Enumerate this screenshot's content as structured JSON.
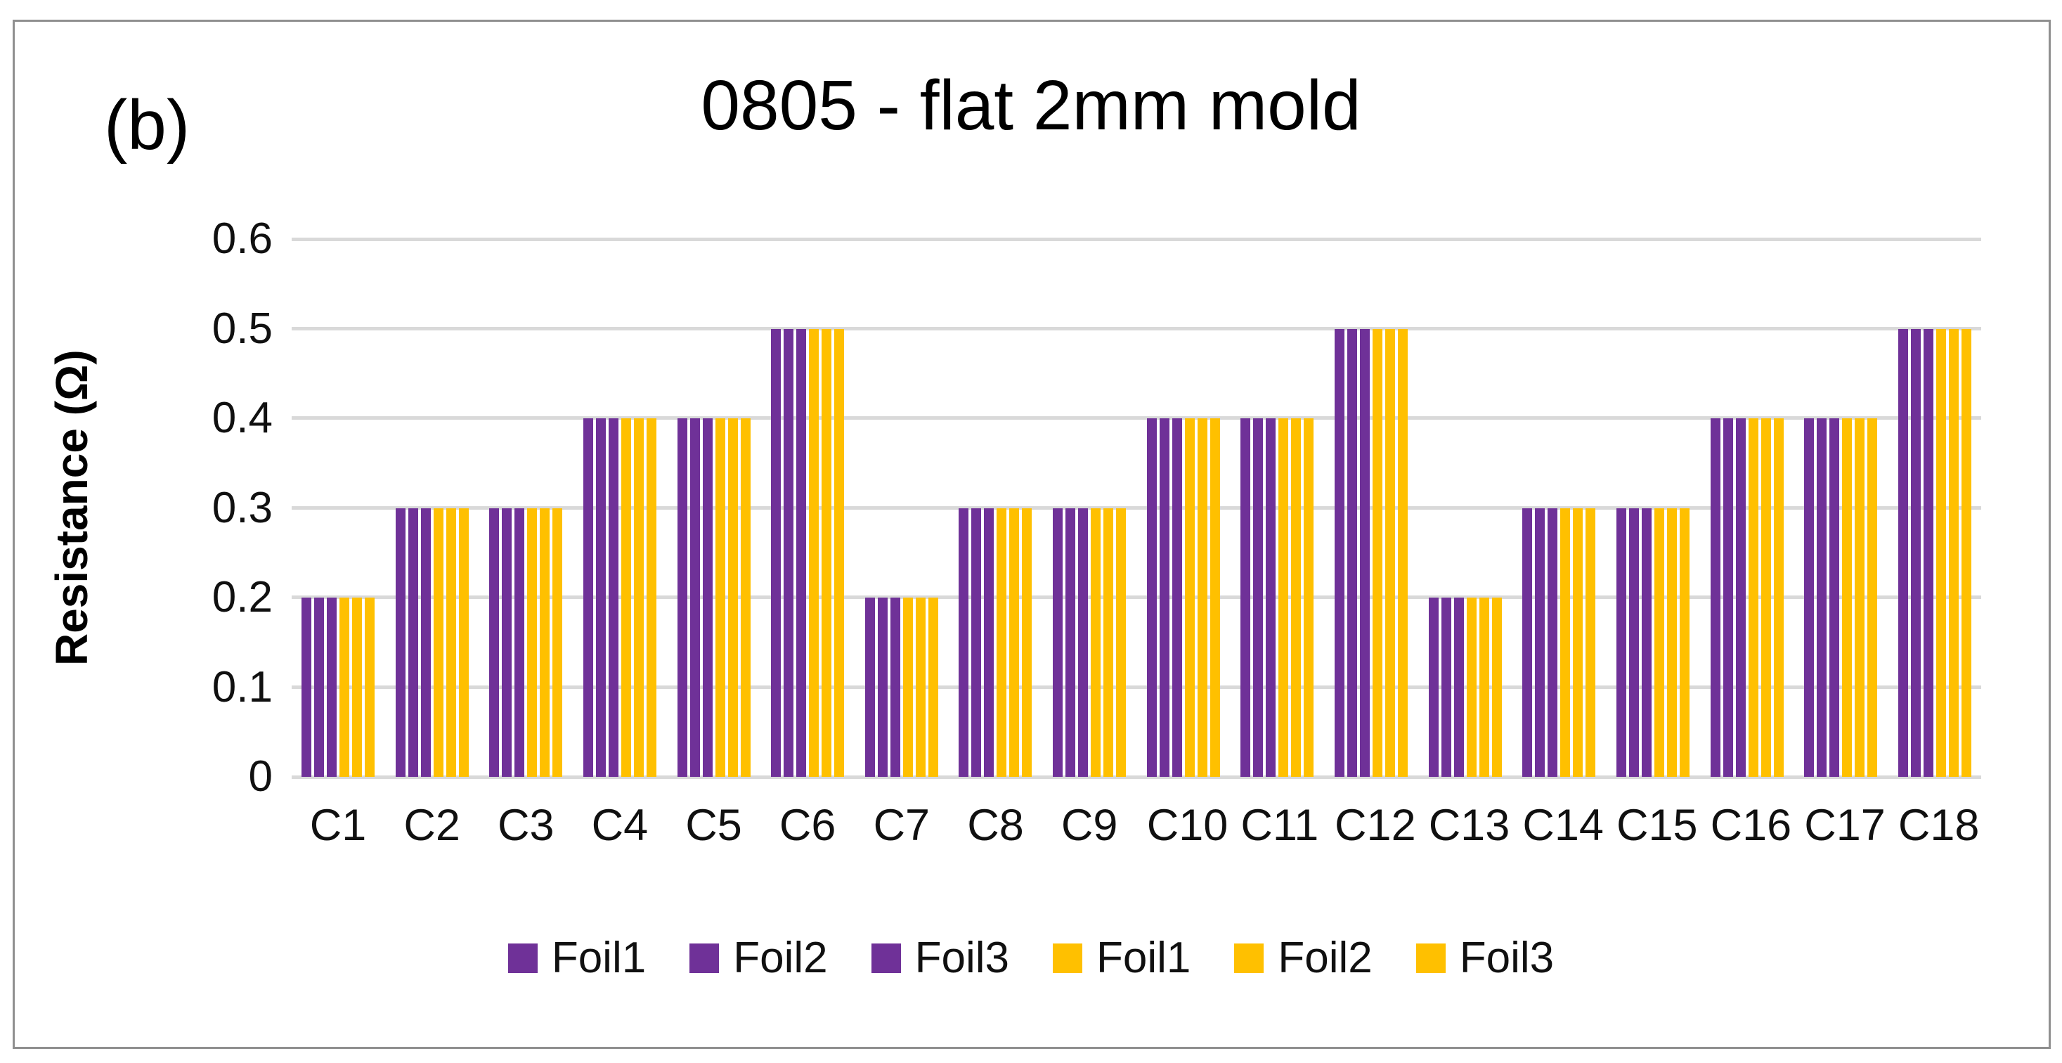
{
  "panel_label": "(b)",
  "title": "0805 - flat 2mm mold",
  "colors": {
    "purple": "#6F3198",
    "gold": "#FFC000",
    "gridline": "#D9D9D9",
    "border": "#8F8F8F",
    "text": "#101010"
  },
  "chart_data": {
    "type": "bar",
    "title": "0805 - flat 2mm mold",
    "xlabel": "",
    "ylabel": "Resistance (Ω)",
    "ylim": [
      0,
      0.6
    ],
    "yticks": [
      0,
      0.1,
      0.2,
      0.3,
      0.4,
      0.5,
      0.6
    ],
    "ytick_labels": [
      "0",
      "0.1",
      "0.2",
      "0.3",
      "0.4",
      "0.5",
      "0.6"
    ],
    "grid": true,
    "legend_position": "bottom",
    "categories": [
      "C1",
      "C2",
      "C3",
      "C4",
      "C5",
      "C6",
      "C7",
      "C8",
      "C9",
      "C10",
      "C11",
      "C12",
      "C13",
      "C14",
      "C15",
      "C16",
      "C17",
      "C18"
    ],
    "series": [
      {
        "name": "Foil1",
        "color": "#6F3198",
        "values": [
          0.2,
          0.3,
          0.3,
          0.4,
          0.4,
          0.5,
          0.2,
          0.3,
          0.3,
          0.4,
          0.4,
          0.5,
          0.2,
          0.3,
          0.3,
          0.4,
          0.4,
          0.5
        ]
      },
      {
        "name": "Foil2",
        "color": "#6F3198",
        "values": [
          0.2,
          0.3,
          0.3,
          0.4,
          0.4,
          0.5,
          0.2,
          0.3,
          0.3,
          0.4,
          0.4,
          0.5,
          0.2,
          0.3,
          0.3,
          0.4,
          0.4,
          0.5
        ]
      },
      {
        "name": "Foil3",
        "color": "#6F3198",
        "values": [
          0.2,
          0.3,
          0.3,
          0.4,
          0.4,
          0.5,
          0.2,
          0.3,
          0.3,
          0.4,
          0.4,
          0.5,
          0.2,
          0.3,
          0.3,
          0.4,
          0.4,
          0.5
        ]
      },
      {
        "name": "Foil1",
        "color": "#FFC000",
        "values": [
          0.2,
          0.3,
          0.3,
          0.4,
          0.4,
          0.5,
          0.2,
          0.3,
          0.3,
          0.4,
          0.4,
          0.5,
          0.2,
          0.3,
          0.3,
          0.4,
          0.4,
          0.5
        ]
      },
      {
        "name": "Foil2",
        "color": "#FFC000",
        "values": [
          0.2,
          0.3,
          0.3,
          0.4,
          0.4,
          0.5,
          0.2,
          0.3,
          0.3,
          0.4,
          0.4,
          0.5,
          0.2,
          0.3,
          0.3,
          0.4,
          0.4,
          0.5
        ]
      },
      {
        "name": "Foil3",
        "color": "#FFC000",
        "values": [
          0.2,
          0.3,
          0.3,
          0.4,
          0.4,
          0.5,
          0.2,
          0.3,
          0.3,
          0.4,
          0.4,
          0.5,
          0.2,
          0.3,
          0.3,
          0.4,
          0.4,
          0.5
        ]
      }
    ]
  }
}
